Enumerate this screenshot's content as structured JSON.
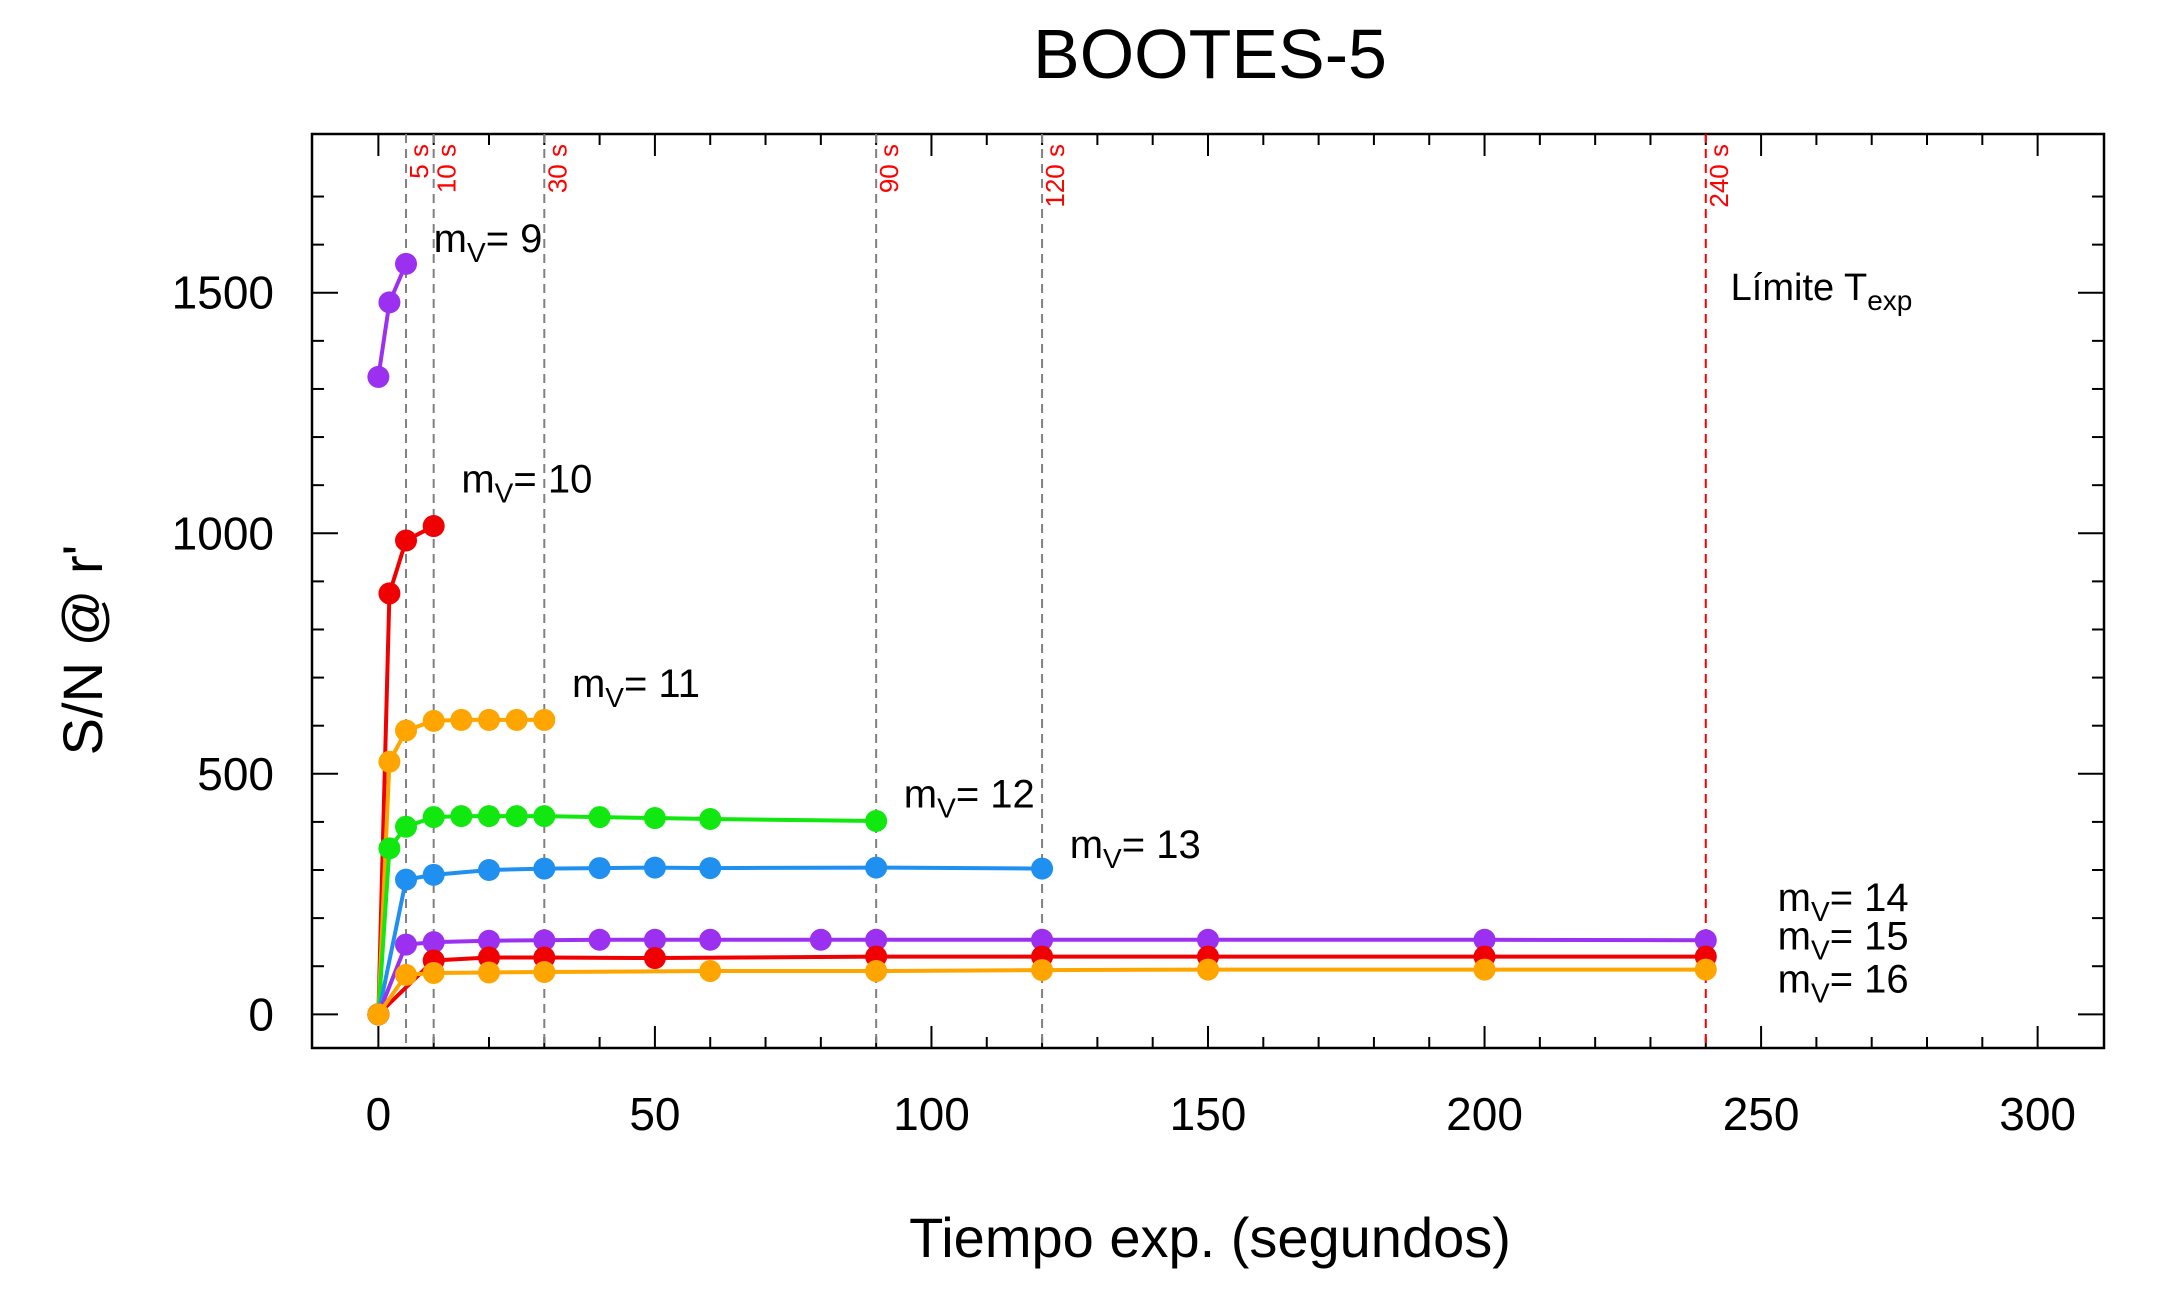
{
  "chart_data": {
    "type": "line",
    "title": "BOOTES-5",
    "xlabel": "Tiempo exp. (segundos)",
    "ylabel": "S/N @ r'",
    "xlim": [
      -12,
      312
    ],
    "ylim": [
      -70,
      1830
    ],
    "xticks": [
      0,
      50,
      100,
      150,
      200,
      250,
      300
    ],
    "yticks": [
      0,
      500,
      1000,
      1500
    ],
    "grid": false,
    "colors": {
      "purple": "#9b30f0",
      "red": "#f00000",
      "orange": "#ffa500",
      "green": "#10e810",
      "blue": "#2090f0",
      "ref_line_gray": "#808080",
      "ref_line_red": "#ff0000"
    },
    "reference_lines": [
      {
        "x": 5,
        "label": "5 s",
        "style": "gray-dashed"
      },
      {
        "x": 10,
        "label": "10 s",
        "style": "gray-dashed"
      },
      {
        "x": 30,
        "label": "30 s",
        "style": "gray-dashed"
      },
      {
        "x": 90,
        "label": "90 s",
        "style": "gray-dashed"
      },
      {
        "x": 120,
        "label": "120 s",
        "style": "gray-dashed"
      },
      {
        "x": 240,
        "label": "240 s",
        "style": "red-dashed"
      }
    ],
    "limit_annotation": {
      "text": "Límite T",
      "sub": "exp"
    },
    "series": [
      {
        "name": "mV= 9",
        "label_prefix": "m",
        "label_sub": "V",
        "label_suffix": "= 9",
        "color": "purple",
        "x": [
          0,
          2,
          5
        ],
        "y": [
          1325,
          1480,
          1560
        ]
      },
      {
        "name": "mV= 10",
        "label_prefix": "m",
        "label_sub": "V",
        "label_suffix": "= 10",
        "color": "red",
        "x": [
          0,
          2,
          5,
          10
        ],
        "y": [
          0,
          875,
          985,
          1015
        ]
      },
      {
        "name": "mV= 11",
        "label_prefix": "m",
        "label_sub": "V",
        "label_suffix": "= 11",
        "color": "orange",
        "x": [
          0,
          2,
          5,
          10,
          15,
          20,
          25,
          30
        ],
        "y": [
          0,
          525,
          590,
          610,
          612,
          612,
          612,
          612
        ]
      },
      {
        "name": "mV= 12",
        "label_prefix": "m",
        "label_sub": "V",
        "label_suffix": "= 12",
        "color": "green",
        "x": [
          0,
          2,
          5,
          10,
          15,
          20,
          25,
          30,
          40,
          50,
          60,
          90
        ],
        "y": [
          0,
          345,
          390,
          410,
          412,
          412,
          412,
          412,
          410,
          408,
          406,
          402
        ]
      },
      {
        "name": "mV= 13",
        "label_prefix": "m",
        "label_sub": "V",
        "label_suffix": "= 13",
        "color": "blue",
        "x": [
          0,
          5,
          10,
          20,
          30,
          40,
          50,
          60,
          90,
          120
        ],
        "y": [
          0,
          280,
          290,
          300,
          303,
          304,
          305,
          304,
          305,
          303
        ]
      },
      {
        "name": "mV= 14",
        "label_prefix": "m",
        "label_sub": "V",
        "label_suffix": "= 14",
        "color": "purple",
        "x": [
          0,
          5,
          10,
          20,
          30,
          40,
          50,
          60,
          80,
          90,
          120,
          150,
          200,
          240
        ],
        "y": [
          0,
          145,
          150,
          153,
          154,
          155,
          155,
          155,
          155,
          155,
          155,
          155,
          155,
          154
        ]
      },
      {
        "name": "mV= 15",
        "label_prefix": "m",
        "label_sub": "V",
        "label_suffix": "= 15",
        "color": "red",
        "x": [
          0,
          10,
          20,
          30,
          50,
          90,
          120,
          150,
          200,
          240
        ],
        "y": [
          0,
          112,
          118,
          118,
          117,
          120,
          120,
          120,
          120,
          120
        ]
      },
      {
        "name": "mV= 16",
        "label_prefix": "m",
        "label_sub": "V",
        "label_suffix": "= 16",
        "color": "orange",
        "x": [
          0,
          5,
          10,
          20,
          30,
          60,
          90,
          120,
          150,
          200,
          240
        ],
        "y": [
          0,
          82,
          86,
          87,
          88,
          90,
          90,
          92,
          93,
          93,
          93
        ]
      }
    ]
  }
}
